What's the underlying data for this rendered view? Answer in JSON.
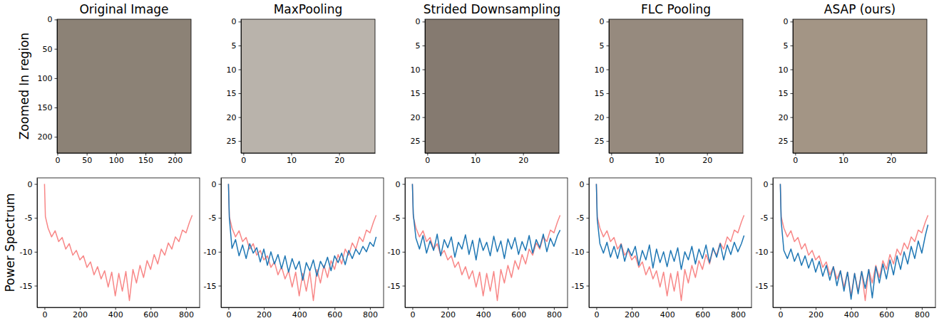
{
  "chart_data": [
    {
      "type": "image",
      "title": "Original Image",
      "ylabel": "Zoomed In region",
      "color": "#8c8276",
      "xlim": [
        -0.5,
        227.5
      ],
      "ylim": [
        227.5,
        -0.5
      ],
      "xticks": [
        0,
        50,
        100,
        150,
        200
      ],
      "yticks": [
        0,
        50,
        100,
        150,
        200
      ]
    },
    {
      "type": "image",
      "title": "MaxPooling",
      "color": "#b9b3ab",
      "xlim": [
        -0.5,
        27.5
      ],
      "ylim": [
        27.5,
        -0.5
      ],
      "xticks": [
        0,
        10,
        20
      ],
      "yticks": [
        0,
        5,
        10,
        15,
        20,
        25
      ]
    },
    {
      "type": "image",
      "title": "Strided Downsampling",
      "color": "#857a70",
      "xlim": [
        -0.5,
        27.5
      ],
      "ylim": [
        27.5,
        -0.5
      ],
      "xticks": [
        0,
        10,
        20
      ],
      "yticks": [
        0,
        5,
        10,
        15,
        20,
        25
      ]
    },
    {
      "type": "image",
      "title": "FLC Pooling",
      "color": "#968a7e",
      "xlim": [
        -0.5,
        27.5
      ],
      "ylim": [
        27.5,
        -0.5
      ],
      "xticks": [
        0,
        10,
        20
      ],
      "yticks": [
        0,
        5,
        10,
        15,
        20,
        25
      ]
    },
    {
      "type": "image",
      "title": "ASAP (ours)",
      "color": "#a39585",
      "xlim": [
        -0.5,
        27.5
      ],
      "ylim": [
        27.5,
        -0.5
      ],
      "xticks": [
        0,
        10,
        20
      ],
      "yticks": [
        0,
        5,
        10,
        15,
        20,
        25
      ]
    },
    {
      "type": "line",
      "ylabel": "Power Spectrum",
      "xlim": [
        -42,
        877
      ],
      "ylim": [
        -18.2,
        0.9
      ],
      "xticks": [
        0,
        200,
        400,
        600,
        800
      ],
      "yticks": [
        0,
        -5,
        -10,
        -15
      ],
      "x": [
        0,
        5,
        20,
        40,
        60,
        80,
        100,
        120,
        140,
        160,
        180,
        200,
        220,
        240,
        260,
        280,
        300,
        320,
        340,
        360,
        380,
        400,
        420,
        440,
        460,
        480,
        500,
        520,
        540,
        560,
        580,
        600,
        620,
        640,
        660,
        680,
        700,
        720,
        740,
        760,
        780,
        800,
        820,
        835
      ],
      "series": [
        {
          "color": "#f88787",
          "values": [
            0,
            -4.8,
            -6.5,
            -7.8,
            -6.9,
            -8.5,
            -7.9,
            -9.6,
            -8.8,
            -10.5,
            -9.8,
            -11.2,
            -10.6,
            -12.3,
            -11.5,
            -13.4,
            -12.2,
            -14.0,
            -12.8,
            -15.2,
            -13.0,
            -16.5,
            -13.2,
            -15.8,
            -12.9,
            -17.2,
            -12.6,
            -14.6,
            -12.0,
            -13.8,
            -11.3,
            -12.6,
            -10.4,
            -11.8,
            -9.6,
            -10.5,
            -8.7,
            -9.6,
            -7.8,
            -8.5,
            -6.8,
            -7.2,
            -5.6,
            -4.6
          ]
        }
      ]
    },
    {
      "type": "line",
      "xlim": [
        -42,
        877
      ],
      "ylim": [
        -18.2,
        0.9
      ],
      "xticks": [
        0,
        200,
        400,
        600,
        800
      ],
      "yticks": [
        0,
        -5,
        -10,
        -15
      ],
      "x": [
        0,
        5,
        20,
        40,
        60,
        80,
        100,
        120,
        140,
        160,
        180,
        200,
        220,
        240,
        260,
        280,
        300,
        320,
        340,
        360,
        380,
        400,
        420,
        440,
        460,
        480,
        500,
        520,
        540,
        560,
        580,
        600,
        620,
        640,
        660,
        680,
        700,
        720,
        740,
        760,
        780,
        800,
        820,
        835
      ],
      "series": [
        {
          "color": "#f88787",
          "values": [
            0,
            -4.8,
            -6.5,
            -7.8,
            -6.9,
            -8.5,
            -7.9,
            -9.6,
            -8.8,
            -10.5,
            -9.8,
            -11.2,
            -10.6,
            -12.3,
            -11.5,
            -13.4,
            -12.2,
            -14.0,
            -12.8,
            -15.2,
            -13.0,
            -16.5,
            -13.2,
            -15.8,
            -12.9,
            -17.2,
            -12.6,
            -14.6,
            -12.0,
            -13.8,
            -11.3,
            -12.6,
            -10.4,
            -11.8,
            -9.6,
            -10.5,
            -8.7,
            -9.6,
            -7.8,
            -8.5,
            -6.8,
            -7.2,
            -5.6,
            -4.6
          ]
        },
        {
          "color": "#1f77b4",
          "values": [
            0,
            -5.0,
            -9.5,
            -8.2,
            -10.6,
            -9.0,
            -11.0,
            -8.8,
            -10.2,
            -9.4,
            -11.5,
            -9.6,
            -12.0,
            -10.0,
            -11.8,
            -10.4,
            -12.5,
            -10.6,
            -13.0,
            -11.0,
            -12.6,
            -11.4,
            -14.2,
            -11.6,
            -12.8,
            -11.2,
            -13.6,
            -11.4,
            -12.4,
            -10.8,
            -12.8,
            -10.6,
            -11.6,
            -10.2,
            -11.9,
            -9.8,
            -11.0,
            -9.6,
            -10.4,
            -9.2,
            -10.0,
            -8.6,
            -9.2,
            -7.8
          ]
        }
      ]
    },
    {
      "type": "line",
      "xlim": [
        -42,
        877
      ],
      "ylim": [
        -18.2,
        0.9
      ],
      "xticks": [
        0,
        200,
        400,
        600,
        800
      ],
      "yticks": [
        0,
        -5,
        -10,
        -15
      ],
      "x": [
        0,
        5,
        20,
        40,
        60,
        80,
        100,
        120,
        140,
        160,
        180,
        200,
        220,
        240,
        260,
        280,
        300,
        320,
        340,
        360,
        380,
        400,
        420,
        440,
        460,
        480,
        500,
        520,
        540,
        560,
        580,
        600,
        620,
        640,
        660,
        680,
        700,
        720,
        740,
        760,
        780,
        800,
        820,
        835
      ],
      "series": [
        {
          "color": "#f88787",
          "values": [
            0,
            -4.8,
            -6.5,
            -7.8,
            -6.9,
            -8.5,
            -7.9,
            -9.6,
            -8.8,
            -10.5,
            -9.8,
            -11.2,
            -10.6,
            -12.3,
            -11.5,
            -13.4,
            -12.2,
            -14.0,
            -12.8,
            -15.2,
            -13.0,
            -16.5,
            -13.2,
            -15.8,
            -12.9,
            -17.2,
            -12.6,
            -14.6,
            -12.0,
            -13.8,
            -11.3,
            -12.6,
            -10.4,
            -11.8,
            -9.6,
            -10.5,
            -8.7,
            -9.6,
            -7.8,
            -8.5,
            -6.8,
            -7.2,
            -5.6,
            -4.6
          ]
        },
        {
          "color": "#1f77b4",
          "values": [
            0,
            -4.5,
            -8.0,
            -9.6,
            -7.6,
            -10.2,
            -8.4,
            -9.8,
            -7.4,
            -10.6,
            -8.2,
            -9.4,
            -7.8,
            -10.8,
            -8.6,
            -9.6,
            -7.5,
            -10.4,
            -8.3,
            -11.2,
            -8.0,
            -9.8,
            -8.6,
            -10.6,
            -7.7,
            -10.0,
            -8.4,
            -11.0,
            -8.1,
            -9.6,
            -7.9,
            -10.4,
            -8.5,
            -9.8,
            -7.6,
            -10.2,
            -8.2,
            -9.4,
            -7.4,
            -10.0,
            -8.0,
            -9.2,
            -7.6,
            -6.8
          ]
        }
      ]
    },
    {
      "type": "line",
      "xlim": [
        -42,
        877
      ],
      "ylim": [
        -18.2,
        0.9
      ],
      "xticks": [
        0,
        200,
        400,
        600,
        800
      ],
      "yticks": [
        0,
        -5,
        -10,
        -15
      ],
      "x": [
        0,
        5,
        20,
        40,
        60,
        80,
        100,
        120,
        140,
        160,
        180,
        200,
        220,
        240,
        260,
        280,
        300,
        320,
        340,
        360,
        380,
        400,
        420,
        440,
        460,
        480,
        500,
        520,
        540,
        560,
        580,
        600,
        620,
        640,
        660,
        680,
        700,
        720,
        740,
        760,
        780,
        800,
        820,
        835
      ],
      "series": [
        {
          "color": "#f88787",
          "values": [
            0,
            -4.8,
            -6.5,
            -7.8,
            -6.9,
            -8.5,
            -7.9,
            -9.6,
            -8.8,
            -10.5,
            -9.8,
            -11.2,
            -10.6,
            -12.3,
            -11.5,
            -13.4,
            -12.2,
            -14.0,
            -12.8,
            -15.2,
            -13.0,
            -16.5,
            -13.2,
            -15.8,
            -12.9,
            -17.2,
            -12.6,
            -14.6,
            -12.0,
            -13.8,
            -11.3,
            -12.6,
            -10.4,
            -11.8,
            -9.6,
            -10.5,
            -8.7,
            -9.6,
            -7.8,
            -8.5,
            -6.8,
            -7.2,
            -5.6,
            -4.6
          ]
        },
        {
          "color": "#1f77b4",
          "values": [
            0,
            -5.2,
            -8.8,
            -10.2,
            -8.6,
            -10.8,
            -9.2,
            -11.0,
            -8.9,
            -11.4,
            -9.5,
            -10.6,
            -9.2,
            -12.0,
            -9.8,
            -11.2,
            -9.0,
            -12.4,
            -9.6,
            -11.6,
            -10.0,
            -12.2,
            -9.8,
            -11.4,
            -9.4,
            -12.6,
            -10.0,
            -11.2,
            -9.2,
            -11.8,
            -9.6,
            -11.0,
            -9.0,
            -11.6,
            -9.4,
            -10.8,
            -8.8,
            -11.2,
            -9.0,
            -10.4,
            -8.6,
            -10.0,
            -8.8,
            -7.6
          ]
        }
      ]
    },
    {
      "type": "line",
      "xlim": [
        -42,
        877
      ],
      "ylim": [
        -18.2,
        0.9
      ],
      "xticks": [
        0,
        200,
        400,
        600,
        800
      ],
      "yticks": [
        0,
        -5,
        -10,
        -15
      ],
      "x": [
        0,
        5,
        20,
        40,
        60,
        80,
        100,
        120,
        140,
        160,
        180,
        200,
        220,
        240,
        260,
        280,
        300,
        320,
        340,
        360,
        380,
        400,
        420,
        440,
        460,
        480,
        500,
        520,
        540,
        560,
        580,
        600,
        620,
        640,
        660,
        680,
        700,
        720,
        740,
        760,
        780,
        800,
        820,
        835
      ],
      "series": [
        {
          "color": "#f88787",
          "values": [
            0,
            -4.8,
            -6.5,
            -7.8,
            -6.9,
            -8.5,
            -7.9,
            -9.6,
            -8.8,
            -10.5,
            -9.8,
            -11.2,
            -10.6,
            -12.3,
            -11.5,
            -13.4,
            -12.2,
            -14.0,
            -12.8,
            -15.2,
            -13.0,
            -16.5,
            -13.2,
            -15.8,
            -12.9,
            -17.2,
            -12.6,
            -14.6,
            -12.0,
            -13.8,
            -11.3,
            -12.6,
            -10.4,
            -11.8,
            -9.6,
            -10.5,
            -8.7,
            -9.6,
            -7.8,
            -8.5,
            -6.8,
            -7.2,
            -5.6,
            -4.6
          ]
        },
        {
          "color": "#1f77b4",
          "values": [
            0,
            -5.5,
            -9.8,
            -11.0,
            -9.6,
            -11.4,
            -10.2,
            -12.0,
            -10.6,
            -12.4,
            -11.0,
            -13.0,
            -11.4,
            -13.6,
            -12.0,
            -14.2,
            -12.2,
            -15.0,
            -12.8,
            -15.8,
            -13.0,
            -17.0,
            -13.2,
            -16.2,
            -12.9,
            -15.4,
            -12.6,
            -16.8,
            -12.2,
            -14.6,
            -11.8,
            -14.0,
            -11.2,
            -13.4,
            -10.6,
            -12.6,
            -10.0,
            -11.8,
            -9.2,
            -11.0,
            -8.4,
            -10.2,
            -7.6,
            -6.0
          ]
        }
      ]
    }
  ]
}
